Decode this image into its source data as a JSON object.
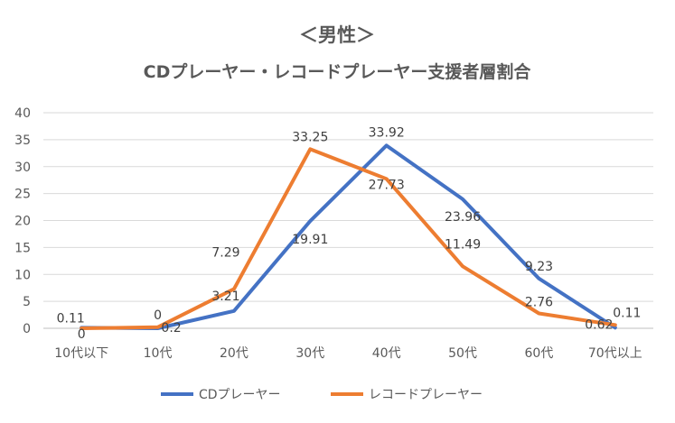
{
  "chart_data": {
    "type": "line",
    "title": "＜男性＞",
    "subtitle": "CDプレーヤー・レコードプレーヤー支援者層割合",
    "categories": [
      "10代以下",
      "10代",
      "20代",
      "30代",
      "40代",
      "50代",
      "60代",
      "70代以上"
    ],
    "ylim": [
      0,
      40
    ],
    "yticks": [
      "0",
      "5",
      "10",
      "15",
      "20",
      "25",
      "30",
      "35",
      "40"
    ],
    "grid": true,
    "legend_position": "bottom",
    "series": [
      {
        "name": "CDプレーヤー",
        "color": "#4472C4",
        "values": [
          0.11,
          0,
          3.21,
          19.91,
          33.92,
          23.96,
          9.23,
          0.11
        ],
        "labels": [
          "0.11",
          "0",
          "3.21",
          "19.91",
          "33.92",
          "23.96",
          "9.23",
          "0.11"
        ]
      },
      {
        "name": "レコードプレーヤー",
        "color": "#ED7D31",
        "values": [
          0,
          0.2,
          7.29,
          33.25,
          27.73,
          11.49,
          2.76,
          0.62
        ],
        "labels": [
          "0",
          "0.2",
          "7.29",
          "33.25",
          "27.73",
          "11.49",
          "2.76",
          "0.62"
        ]
      }
    ]
  }
}
